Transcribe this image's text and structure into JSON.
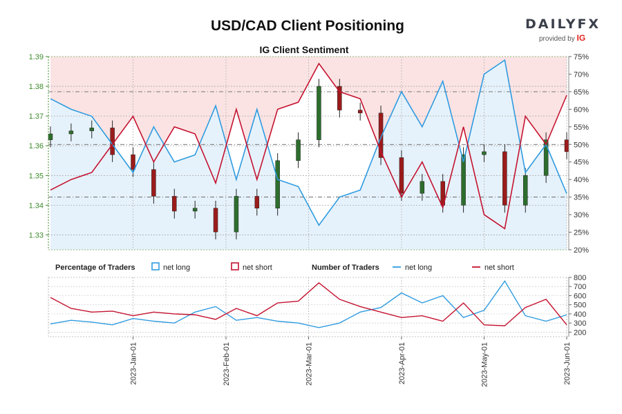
{
  "header": {
    "title": "USD/CAD Client Positioning",
    "subtitle": "IG Client Sentiment",
    "brand_main": "DAILYFX",
    "brand_provided": "provided by",
    "brand_ig": "IG"
  },
  "legend": {
    "pct_title": "Percentage of Traders",
    "pct_long": "net long",
    "pct_short": "net short",
    "num_title": "Number of Traders",
    "num_long": "net long",
    "num_short": "net short"
  },
  "colors": {
    "long": "#2f9be0",
    "short": "#c4122f",
    "long_fill": "#e6f2fb",
    "short_fill": "#fbe3e3",
    "candle_up": "#2d6e2d",
    "candle_down": "#9b1b1b",
    "left_axis": "#3d8a2a"
  },
  "chart_data": [
    {
      "type": "candlestick",
      "title": "USD/CAD Client Positioning",
      "subtitle": "IG Client Sentiment",
      "price_axis": {
        "ylim": [
          1.325,
          1.39
        ],
        "ticks": [
          1.33,
          1.34,
          1.35,
          1.36,
          1.37,
          1.38,
          1.39
        ]
      },
      "sentiment_axis": {
        "ylim": [
          20,
          75
        ],
        "ticks": [
          "20%",
          "25%",
          "30%",
          "35%",
          "40%",
          "45%",
          "50%",
          "55%",
          "60%",
          "65%",
          "70%",
          "75%"
        ]
      },
      "x_ticks": [
        "2023-Jan-01",
        "2023-Feb-01",
        "2023-Mar-01",
        "2023-Apr-01",
        "2023-May-01",
        "2023-Jun-01"
      ],
      "price_series": {
        "dates": [
          "Dec-05",
          "Dec-12",
          "Dec-19",
          "Dec-27",
          "Jan-03",
          "Jan-10",
          "Jan-17",
          "Jan-24",
          "Feb-01",
          "Feb-07",
          "Feb-14",
          "Feb-21",
          "Feb-28",
          "Mar-07",
          "Mar-14",
          "Mar-21",
          "Mar-28",
          "Apr-04",
          "Apr-11",
          "Apr-18",
          "Apr-25",
          "May-02",
          "May-09",
          "May-16",
          "May-23",
          "May-31"
        ],
        "close": [
          1.364,
          1.365,
          1.366,
          1.357,
          1.352,
          1.343,
          1.338,
          1.339,
          1.331,
          1.343,
          1.339,
          1.355,
          1.362,
          1.38,
          1.372,
          1.371,
          1.356,
          1.344,
          1.348,
          1.34,
          1.357,
          1.358,
          1.34,
          1.35,
          1.362,
          1.358
        ]
      },
      "net_long_pct": {
        "dates": [
          "Dec-05",
          "Dec-12",
          "Dec-19",
          "Dec-27",
          "Jan-03",
          "Jan-10",
          "Jan-17",
          "Jan-24",
          "Feb-01",
          "Feb-07",
          "Feb-14",
          "Feb-21",
          "Feb-28",
          "Mar-07",
          "Mar-14",
          "Mar-21",
          "Mar-28",
          "Apr-04",
          "Apr-11",
          "Apr-18",
          "Apr-25",
          "May-02",
          "May-09",
          "May-16",
          "May-23",
          "May-31"
        ],
        "values": [
          63,
          60,
          58,
          50,
          42,
          55,
          45,
          47,
          61,
          40,
          60,
          40,
          38,
          27,
          35,
          37,
          52,
          65,
          55,
          68,
          45,
          70,
          74,
          42,
          50,
          36
        ]
      },
      "net_short_pct": {
        "dates": [
          "Dec-05",
          "Dec-12",
          "Dec-19",
          "Dec-27",
          "Jan-03",
          "Jan-10",
          "Jan-17",
          "Jan-24",
          "Feb-01",
          "Feb-07",
          "Feb-14",
          "Feb-21",
          "Feb-28",
          "Mar-07",
          "Mar-14",
          "Mar-21",
          "Mar-28",
          "Apr-04",
          "Apr-11",
          "Apr-18",
          "Apr-25",
          "May-02",
          "May-09",
          "May-16",
          "May-23",
          "May-31"
        ],
        "values": [
          37,
          40,
          42,
          50,
          58,
          45,
          55,
          53,
          39,
          60,
          40,
          60,
          62,
          73,
          65,
          63,
          48,
          35,
          45,
          32,
          55,
          30,
          26,
          58,
          50,
          64
        ]
      }
    },
    {
      "type": "line",
      "y_ticks": [
        200,
        300,
        400,
        500,
        600,
        700,
        800
      ],
      "ylim": [
        150,
        800
      ],
      "series": [
        {
          "name": "net long",
          "values": [
            290,
            330,
            310,
            280,
            350,
            320,
            300,
            420,
            480,
            330,
            360,
            320,
            300,
            250,
            300,
            420,
            470,
            630,
            520,
            600,
            360,
            440,
            760,
            380,
            320,
            390
          ]
        },
        {
          "name": "net short",
          "values": [
            580,
            460,
            420,
            430,
            380,
            420,
            400,
            390,
            340,
            460,
            380,
            520,
            540,
            740,
            560,
            480,
            420,
            360,
            380,
            320,
            520,
            280,
            270,
            470,
            560,
            280
          ]
        }
      ]
    }
  ]
}
